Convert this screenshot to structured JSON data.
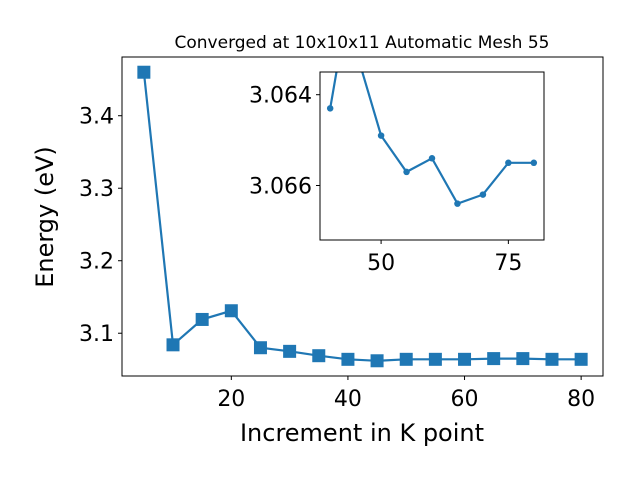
{
  "chart_data": [
    {
      "type": "line",
      "title": "Converged at 10x10x11 Automatic Mesh 55",
      "xlabel": "Increment in K point",
      "ylabel": "Energy (eV)",
      "marker": "square",
      "color": "#1f77b4",
      "xlim": [
        1.25,
        83.75
      ],
      "ylim": [
        3.041,
        3.481
      ],
      "xticks": [
        20,
        40,
        60,
        80
      ],
      "yticks": [
        3.1,
        3.2,
        3.3,
        3.4
      ],
      "xtick_labels": [
        "20",
        "40",
        "60",
        "80"
      ],
      "ytick_labels": [
        "3.1",
        "3.2",
        "3.3",
        "3.4"
      ],
      "grid": false,
      "series": [
        {
          "x": [
            5,
            10,
            15,
            20,
            25,
            30,
            35,
            40,
            45,
            50,
            55,
            60,
            65,
            70,
            75,
            80
          ],
          "values": [
            3.46,
            3.084,
            3.119,
            3.131,
            3.08,
            3.075,
            3.069,
            3.064,
            3.062,
            3.064,
            3.064,
            3.064,
            3.065,
            3.065,
            3.064,
            3.064
          ]
        }
      ]
    },
    {
      "type": "line",
      "title": "",
      "xlabel": "",
      "ylabel": "",
      "marker": "circle",
      "color": "#1f77b4",
      "position": "inset-top-right",
      "xlim": [
        38,
        82
      ],
      "ylim": [
        3.0672,
        3.0635
      ],
      "xticks": [
        50,
        75
      ],
      "yticks": [
        3.064,
        3.066
      ],
      "xtick_labels": [
        "50",
        "75"
      ],
      "ytick_labels": [
        "3.064",
        "3.066"
      ],
      "grid": false,
      "series": [
        {
          "x": [
            40,
            42,
            45,
            50,
            55,
            60,
            65,
            70,
            75,
            80
          ],
          "values": [
            3.0643,
            3.063,
            3.063,
            3.0649,
            3.0657,
            3.0654,
            3.0664,
            3.0662,
            3.0655,
            3.0655
          ]
        }
      ]
    }
  ]
}
